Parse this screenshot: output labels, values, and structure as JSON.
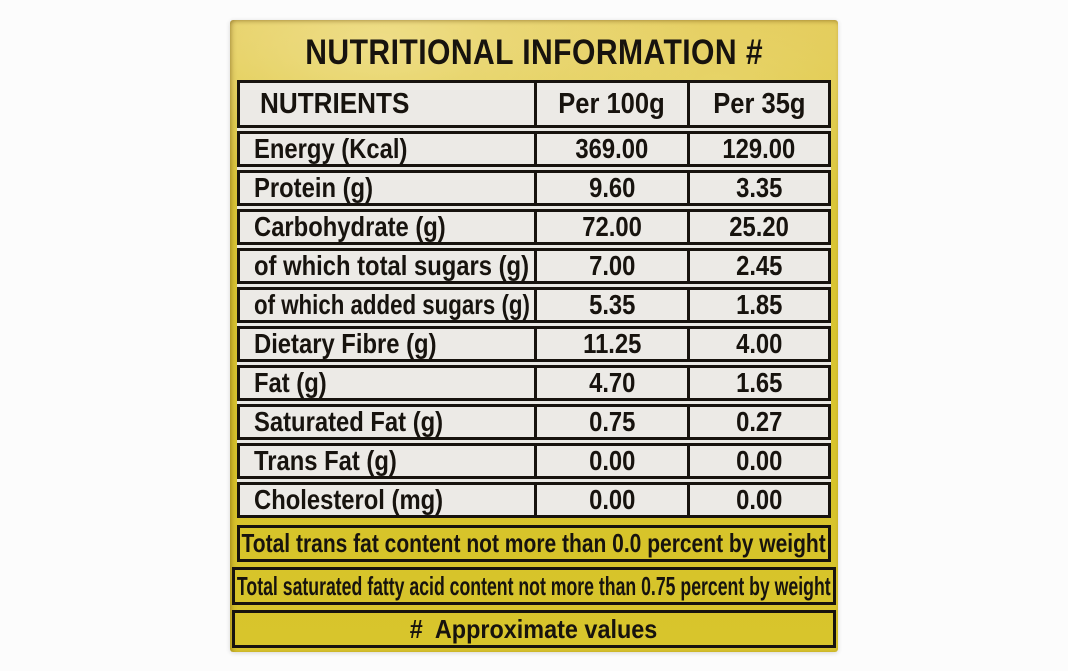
{
  "label": {
    "title": "NUTRITIONAL INFORMATION #",
    "colors": {
      "label_yellow": "#d8c42c",
      "label_yellow_light": "#e5cc58",
      "table_cell_bg": "#eceae6",
      "border_black": "#17130e",
      "text_black": "#17130e",
      "page_bg": "#fcfcfc"
    },
    "table": {
      "headers": {
        "nutrients": "NUTRIENTS",
        "per_100g": "Per 100g",
        "per_35g": "Per 35g"
      },
      "rows": [
        {
          "name": "Energy (Kcal)",
          "per_100g": "369.00",
          "per_35g": "129.00"
        },
        {
          "name": "Protein (g)",
          "per_100g": "9.60",
          "per_35g": "3.35"
        },
        {
          "name": "Carbohydrate (g)",
          "per_100g": "72.00",
          "per_35g": "25.20"
        },
        {
          "name": "of which total sugars (g)",
          "per_100g": "7.00",
          "per_35g": "2.45"
        },
        {
          "name": "of which added sugars (g)",
          "per_100g": "5.35",
          "per_35g": "1.85"
        },
        {
          "name": "Dietary Fibre (g)",
          "per_100g": "11.25",
          "per_35g": "4.00"
        },
        {
          "name": "Fat (g)",
          "per_100g": "4.70",
          "per_35g": "1.65"
        },
        {
          "name": "Saturated Fat (g)",
          "per_100g": "0.75",
          "per_35g": "0.27"
        },
        {
          "name": "Trans Fat (g)",
          "per_100g": "0.00",
          "per_35g": "0.00"
        },
        {
          "name": "Cholesterol (mg)",
          "per_100g": "0.00",
          "per_35g": "0.00"
        }
      ]
    },
    "footnotes": [
      "Total trans fat content not more than 0.0 percent by weight",
      "Total saturated fatty acid content not more than 0.75 percent by weight",
      "#  Approximate values"
    ]
  }
}
